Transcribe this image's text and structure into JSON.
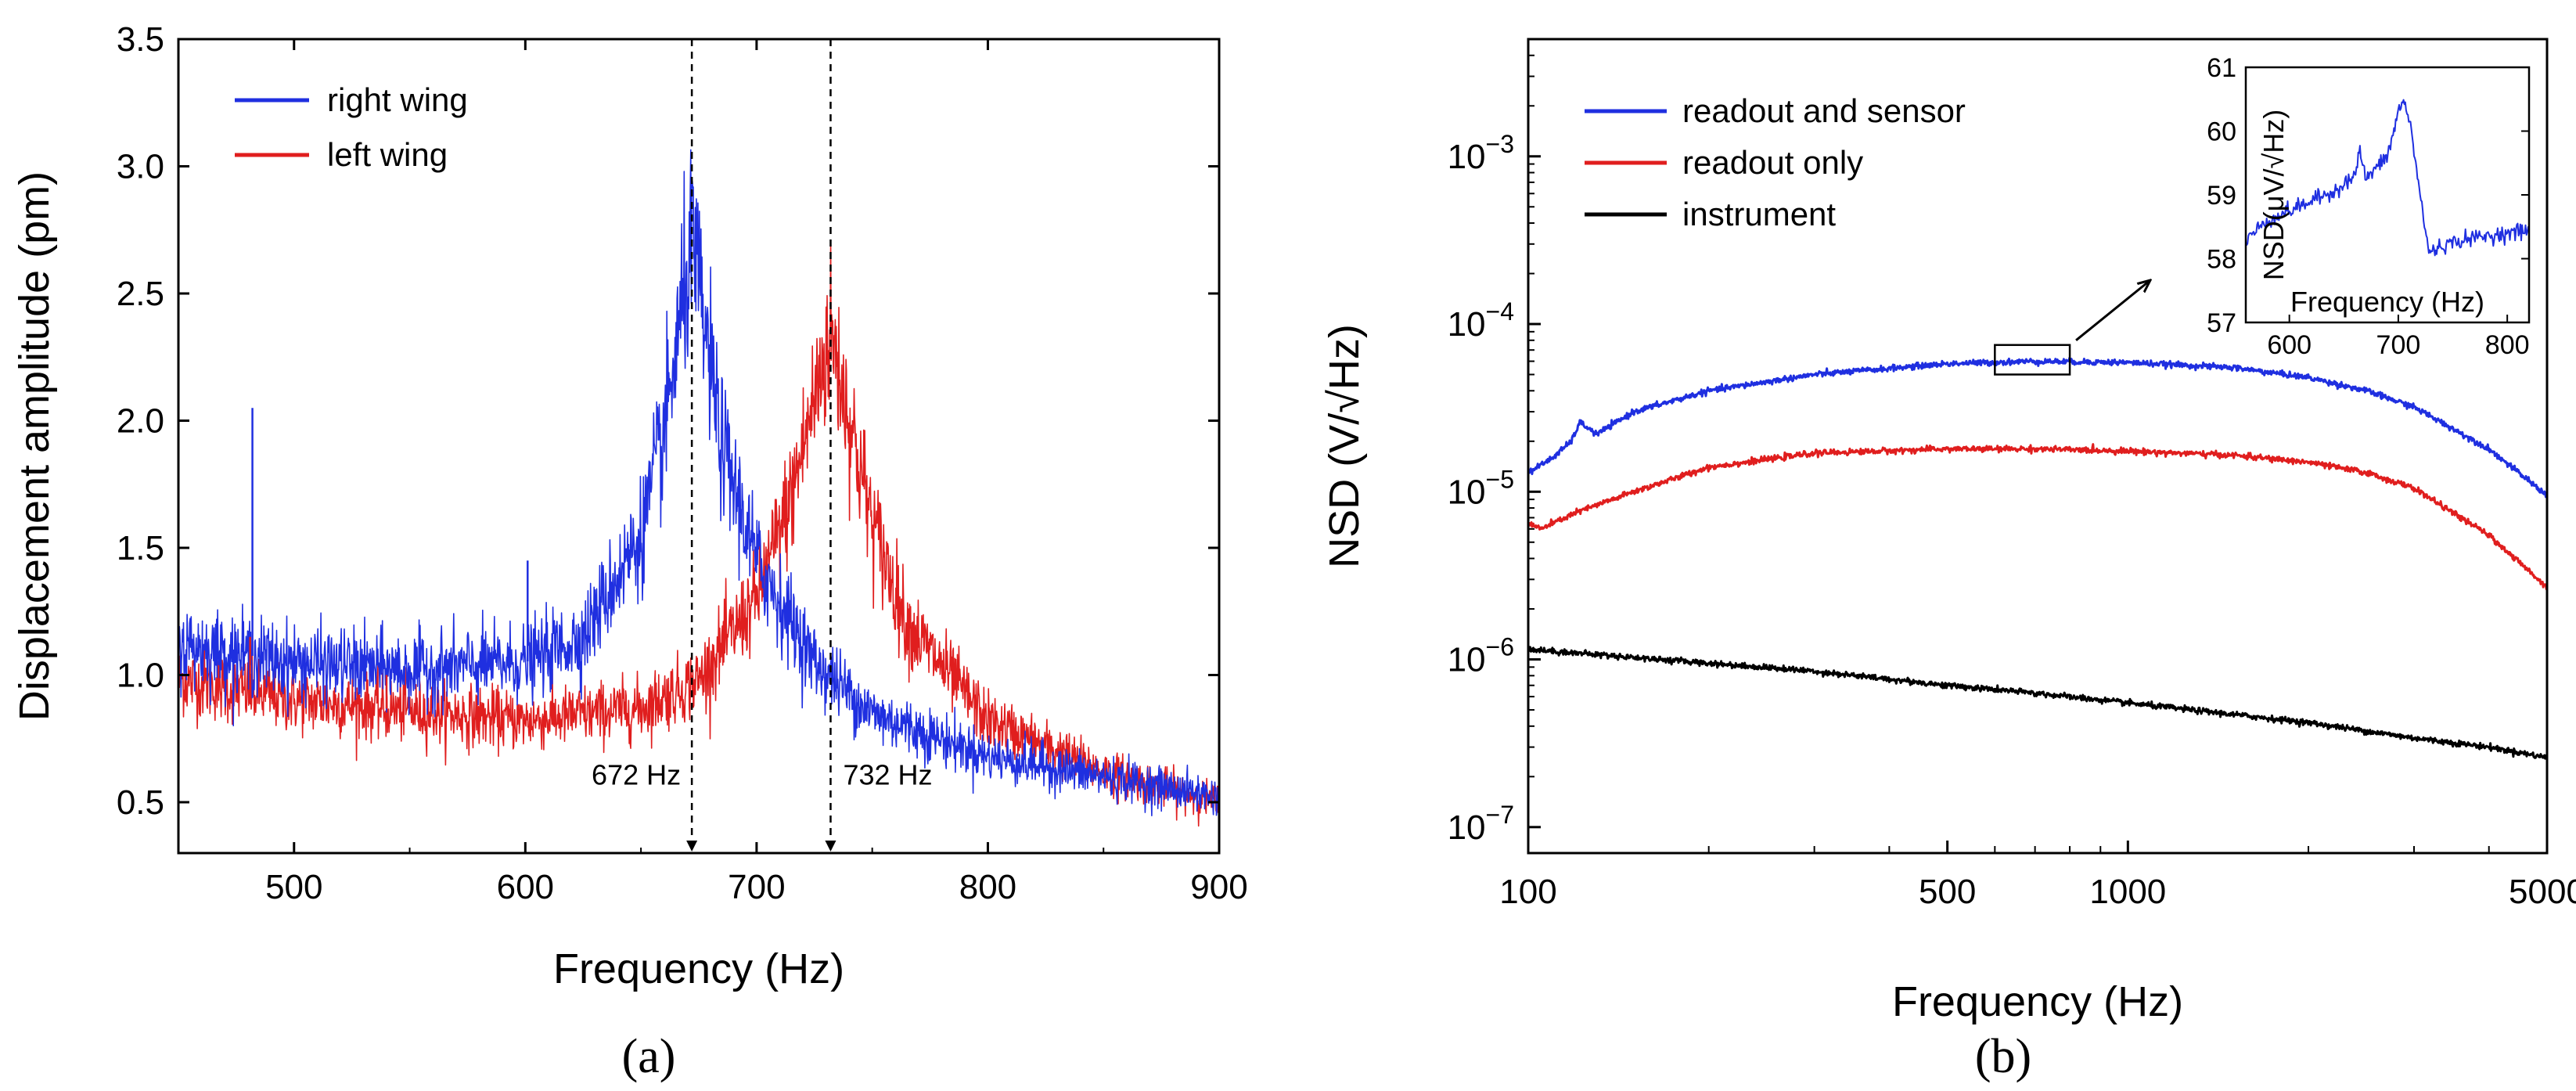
{
  "chart_data": [
    {
      "id": "a",
      "type": "line",
      "panel_label": "(a)",
      "xlabel": "Frequency (Hz)",
      "ylabel": "Displacement amplitude (pm)",
      "xlim": [
        450,
        900
      ],
      "ylim": [
        0.3,
        3.5
      ],
      "xticks": [
        500,
        600,
        700,
        800,
        900
      ],
      "xtick_labels": [
        "500",
        "600",
        "700",
        "800",
        "900"
      ],
      "yticks": [
        0.5,
        1.0,
        1.5,
        2.0,
        2.5,
        3.0,
        3.5
      ],
      "ytick_labels": [
        "0.5",
        "1.0",
        "1.5",
        "2.0",
        "2.5",
        "3.0",
        "3.5"
      ],
      "legend_position": "top-left",
      "series": [
        {
          "name": "right wing",
          "color": "#1f2fe0",
          "x": [
            450,
            500,
            550,
            600,
            625,
            650,
            660,
            672,
            685,
            700,
            725,
            750,
            800,
            850,
            900
          ],
          "y": [
            1.12,
            1.05,
            1.02,
            1.05,
            1.15,
            1.55,
            1.95,
            2.7,
            1.9,
            1.45,
            1.05,
            0.85,
            0.68,
            0.6,
            0.52
          ]
        },
        {
          "name": "left wing",
          "color": "#e01e1e",
          "x": [
            450,
            500,
            550,
            600,
            650,
            675,
            700,
            715,
            732,
            750,
            765,
            800,
            850,
            900
          ],
          "y": [
            0.98,
            0.9,
            0.86,
            0.82,
            0.87,
            0.98,
            1.3,
            1.7,
            2.35,
            1.6,
            1.2,
            0.82,
            0.62,
            0.5
          ]
        }
      ],
      "annotations": [
        {
          "text": "672 Hz",
          "x": 672
        },
        {
          "text": "732 Hz",
          "x": 732
        }
      ]
    },
    {
      "id": "b",
      "type": "line",
      "panel_label": "(b)",
      "xscale": "log",
      "yscale": "log",
      "xlabel": "Frequency (Hz)",
      "ylabel": "NSD (V/√Hz)",
      "xlim": [
        100,
        5000
      ],
      "ylim": [
        7e-08,
        0.005
      ],
      "xticks": [
        100,
        500,
        1000,
        5000
      ],
      "xtick_labels": [
        "100",
        "500",
        "1000",
        "5000"
      ],
      "yticks": [
        1e-07,
        1e-06,
        1e-05,
        0.0001,
        0.001
      ],
      "ytick_exponents": [
        "−7",
        "−6",
        "−5",
        "−4",
        "−3"
      ],
      "ytick_base": "10",
      "legend_position": "top-left",
      "series": [
        {
          "name": "readout and sensor",
          "color": "#1f2fe0",
          "x": [
            100,
            110,
            118,
            122,
            130,
            150,
            200,
            300,
            500,
            700,
            1000,
            1500,
            2000,
            2500,
            3000,
            4000,
            5000
          ],
          "y": [
            1.3e-05,
            1.6e-05,
            2e-05,
            2.6e-05,
            2.2e-05,
            3e-05,
            4e-05,
            5e-05,
            5.8e-05,
            6e-05,
            5.9e-05,
            5.5e-05,
            4.8e-05,
            4e-05,
            3.2e-05,
            1.8e-05,
            9.5e-06
          ]
        },
        {
          "name": "readout only",
          "color": "#e01e1e",
          "x": [
            100,
            105,
            120,
            150,
            200,
            300,
            500,
            700,
            1000,
            1500,
            2000,
            2500,
            3000,
            4000,
            5000
          ],
          "y": [
            6.5e-06,
            6e-06,
            7.5e-06,
            1e-05,
            1.4e-05,
            1.7e-05,
            1.8e-05,
            1.8e-05,
            1.75e-05,
            1.65e-05,
            1.5e-05,
            1.3e-05,
            1.05e-05,
            5.5e-06,
            2.7e-06
          ]
        },
        {
          "name": "instrument",
          "color": "#000000",
          "x": [
            100,
            200,
            300,
            500,
            700,
            1000,
            2000,
            3000,
            4000,
            5000
          ],
          "y": [
            1.15e-06,
            9.5e-07,
            8.5e-07,
            7e-07,
            6.3e-07,
            5.5e-07,
            4.2e-07,
            3.4e-07,
            3e-07,
            2.6e-07
          ]
        }
      ],
      "highlight_box": {
        "x_range": [
          600,
          800
        ],
        "y_range": [
          5e-05,
          7.5e-05
        ]
      },
      "inset": {
        "xlabel": "Frequency (Hz)",
        "ylabel": "NSD(μV/√Hz)",
        "xlim": [
          560,
          820
        ],
        "ylim": [
          57,
          61
        ],
        "xticks": [
          600,
          700,
          800
        ],
        "xtick_labels": [
          "600",
          "700",
          "800"
        ],
        "yticks": [
          57,
          58,
          59,
          60,
          61
        ],
        "ytick_labels": [
          "57",
          "58",
          "59",
          "60",
          "61"
        ],
        "series": [
          {
            "name": "readout and sensor",
            "color": "#1f2fe0",
            "x": [
              560,
              580,
              600,
              620,
              640,
              660,
              665,
              670,
              690,
              700,
              705,
              712,
              720,
              728,
              740,
              760,
              780,
              800,
              820
            ],
            "y": [
              58.3,
              58.6,
              58.75,
              58.9,
              59.05,
              59.3,
              59.7,
              59.25,
              59.6,
              60.3,
              60.5,
              60.0,
              59.0,
              58.1,
              58.2,
              58.3,
              58.35,
              58.4,
              58.45
            ]
          }
        ]
      }
    }
  ]
}
